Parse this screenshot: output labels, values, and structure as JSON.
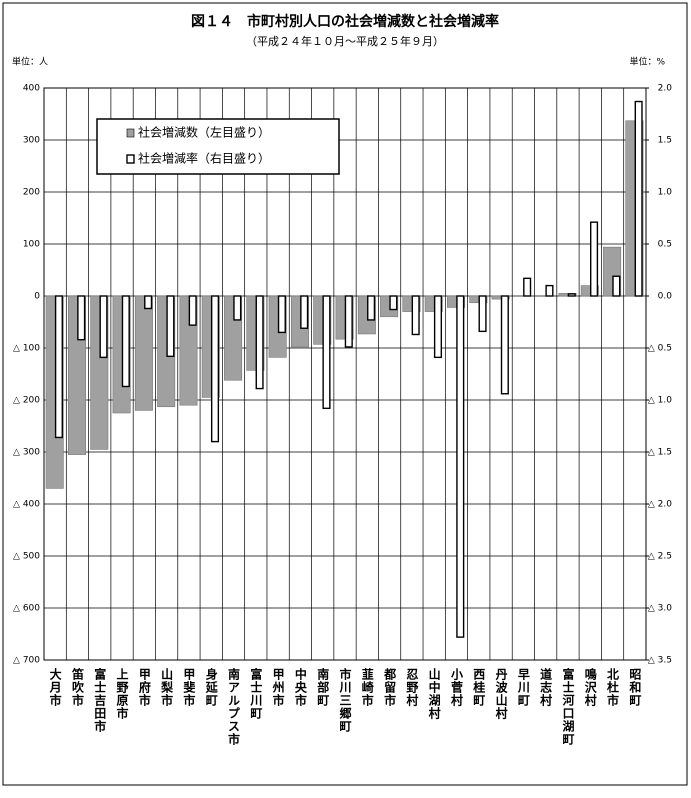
{
  "chart_data": {
    "type": "bar",
    "title": "図１４　市町村別人口の社会増減数と社会増減率",
    "subtitle": "（平成２４年１０月～平成２５年９月）",
    "y_unit_label": "単位：人",
    "y2_unit_label": "単位：%",
    "categories": [
      "大月市",
      "笛吹市",
      "富士吉田市",
      "上野原市",
      "甲府市",
      "山梨市",
      "甲斐市",
      "身延町",
      "南アルプス市",
      "富士川町",
      "甲州市",
      "中央市",
      "南部町",
      "市川三郷町",
      "韮崎市",
      "都留市",
      "忍野村",
      "山中湖村",
      "小菅村",
      "西桂町",
      "丹波山村",
      "早川町",
      "道志村",
      "富士河口湖町",
      "鳴沢村",
      "北杜市",
      "昭和町"
    ],
    "series": [
      {
        "name": "社会増減数（左目盛り）",
        "color": "#a0a0a0",
        "values": [
          -370,
          -305,
          -295,
          -225,
          -220,
          -213,
          -210,
          -195,
          -162,
          -143,
          -118,
          -98,
          -93,
          -83,
          -73,
          -40,
          -30,
          -30,
          -22,
          -13,
          -6,
          0,
          0,
          5,
          20,
          94,
          337
        ]
      },
      {
        "name": "社会増減率（右目盛り）",
        "color": "#ffffff",
        "axis": "y2",
        "values": [
          -1.36,
          -0.42,
          -0.59,
          -0.87,
          -0.12,
          -0.58,
          -0.28,
          -1.4,
          -0.23,
          -0.89,
          -0.35,
          -0.31,
          -1.08,
          -0.49,
          -0.23,
          -0.13,
          -0.37,
          -0.59,
          -3.28,
          -0.34,
          -0.94,
          0.17,
          0.1,
          0.02,
          0.71,
          0.19,
          1.87
        ]
      }
    ],
    "ylim": [
      -700,
      400
    ],
    "yticks": [
      {
        "value": -700,
        "label": "△ 700"
      },
      {
        "value": -600,
        "label": "△ 600"
      },
      {
        "value": -500,
        "label": "△ 500"
      },
      {
        "value": -400,
        "label": "△ 400"
      },
      {
        "value": -300,
        "label": "△ 300"
      },
      {
        "value": -200,
        "label": "△ 200"
      },
      {
        "value": -100,
        "label": "△ 100"
      },
      0,
      100,
      200,
      300,
      400
    ],
    "y2lim": [
      -3.5,
      2.0
    ],
    "y2ticks": [
      {
        "value": -3.5,
        "label": "△ 3.5"
      },
      {
        "value": -3.0,
        "label": "△ 3.0"
      },
      {
        "value": -2.5,
        "label": "△ 2.5"
      },
      {
        "value": -2.0,
        "label": "△ 2.0"
      },
      {
        "value": -1.5,
        "label": "△ 1.5"
      },
      {
        "value": -1.0,
        "label": "△ 1.0"
      },
      {
        "value": -0.5,
        "label": "△ 0.5"
      },
      {
        "value": 0,
        "label": "0.0"
      },
      0.5,
      {
        "value": 1,
        "label": "1.0"
      },
      1.5,
      {
        "value": 2,
        "label": "2.0"
      }
    ],
    "grid": true,
    "legend": "upper left"
  }
}
